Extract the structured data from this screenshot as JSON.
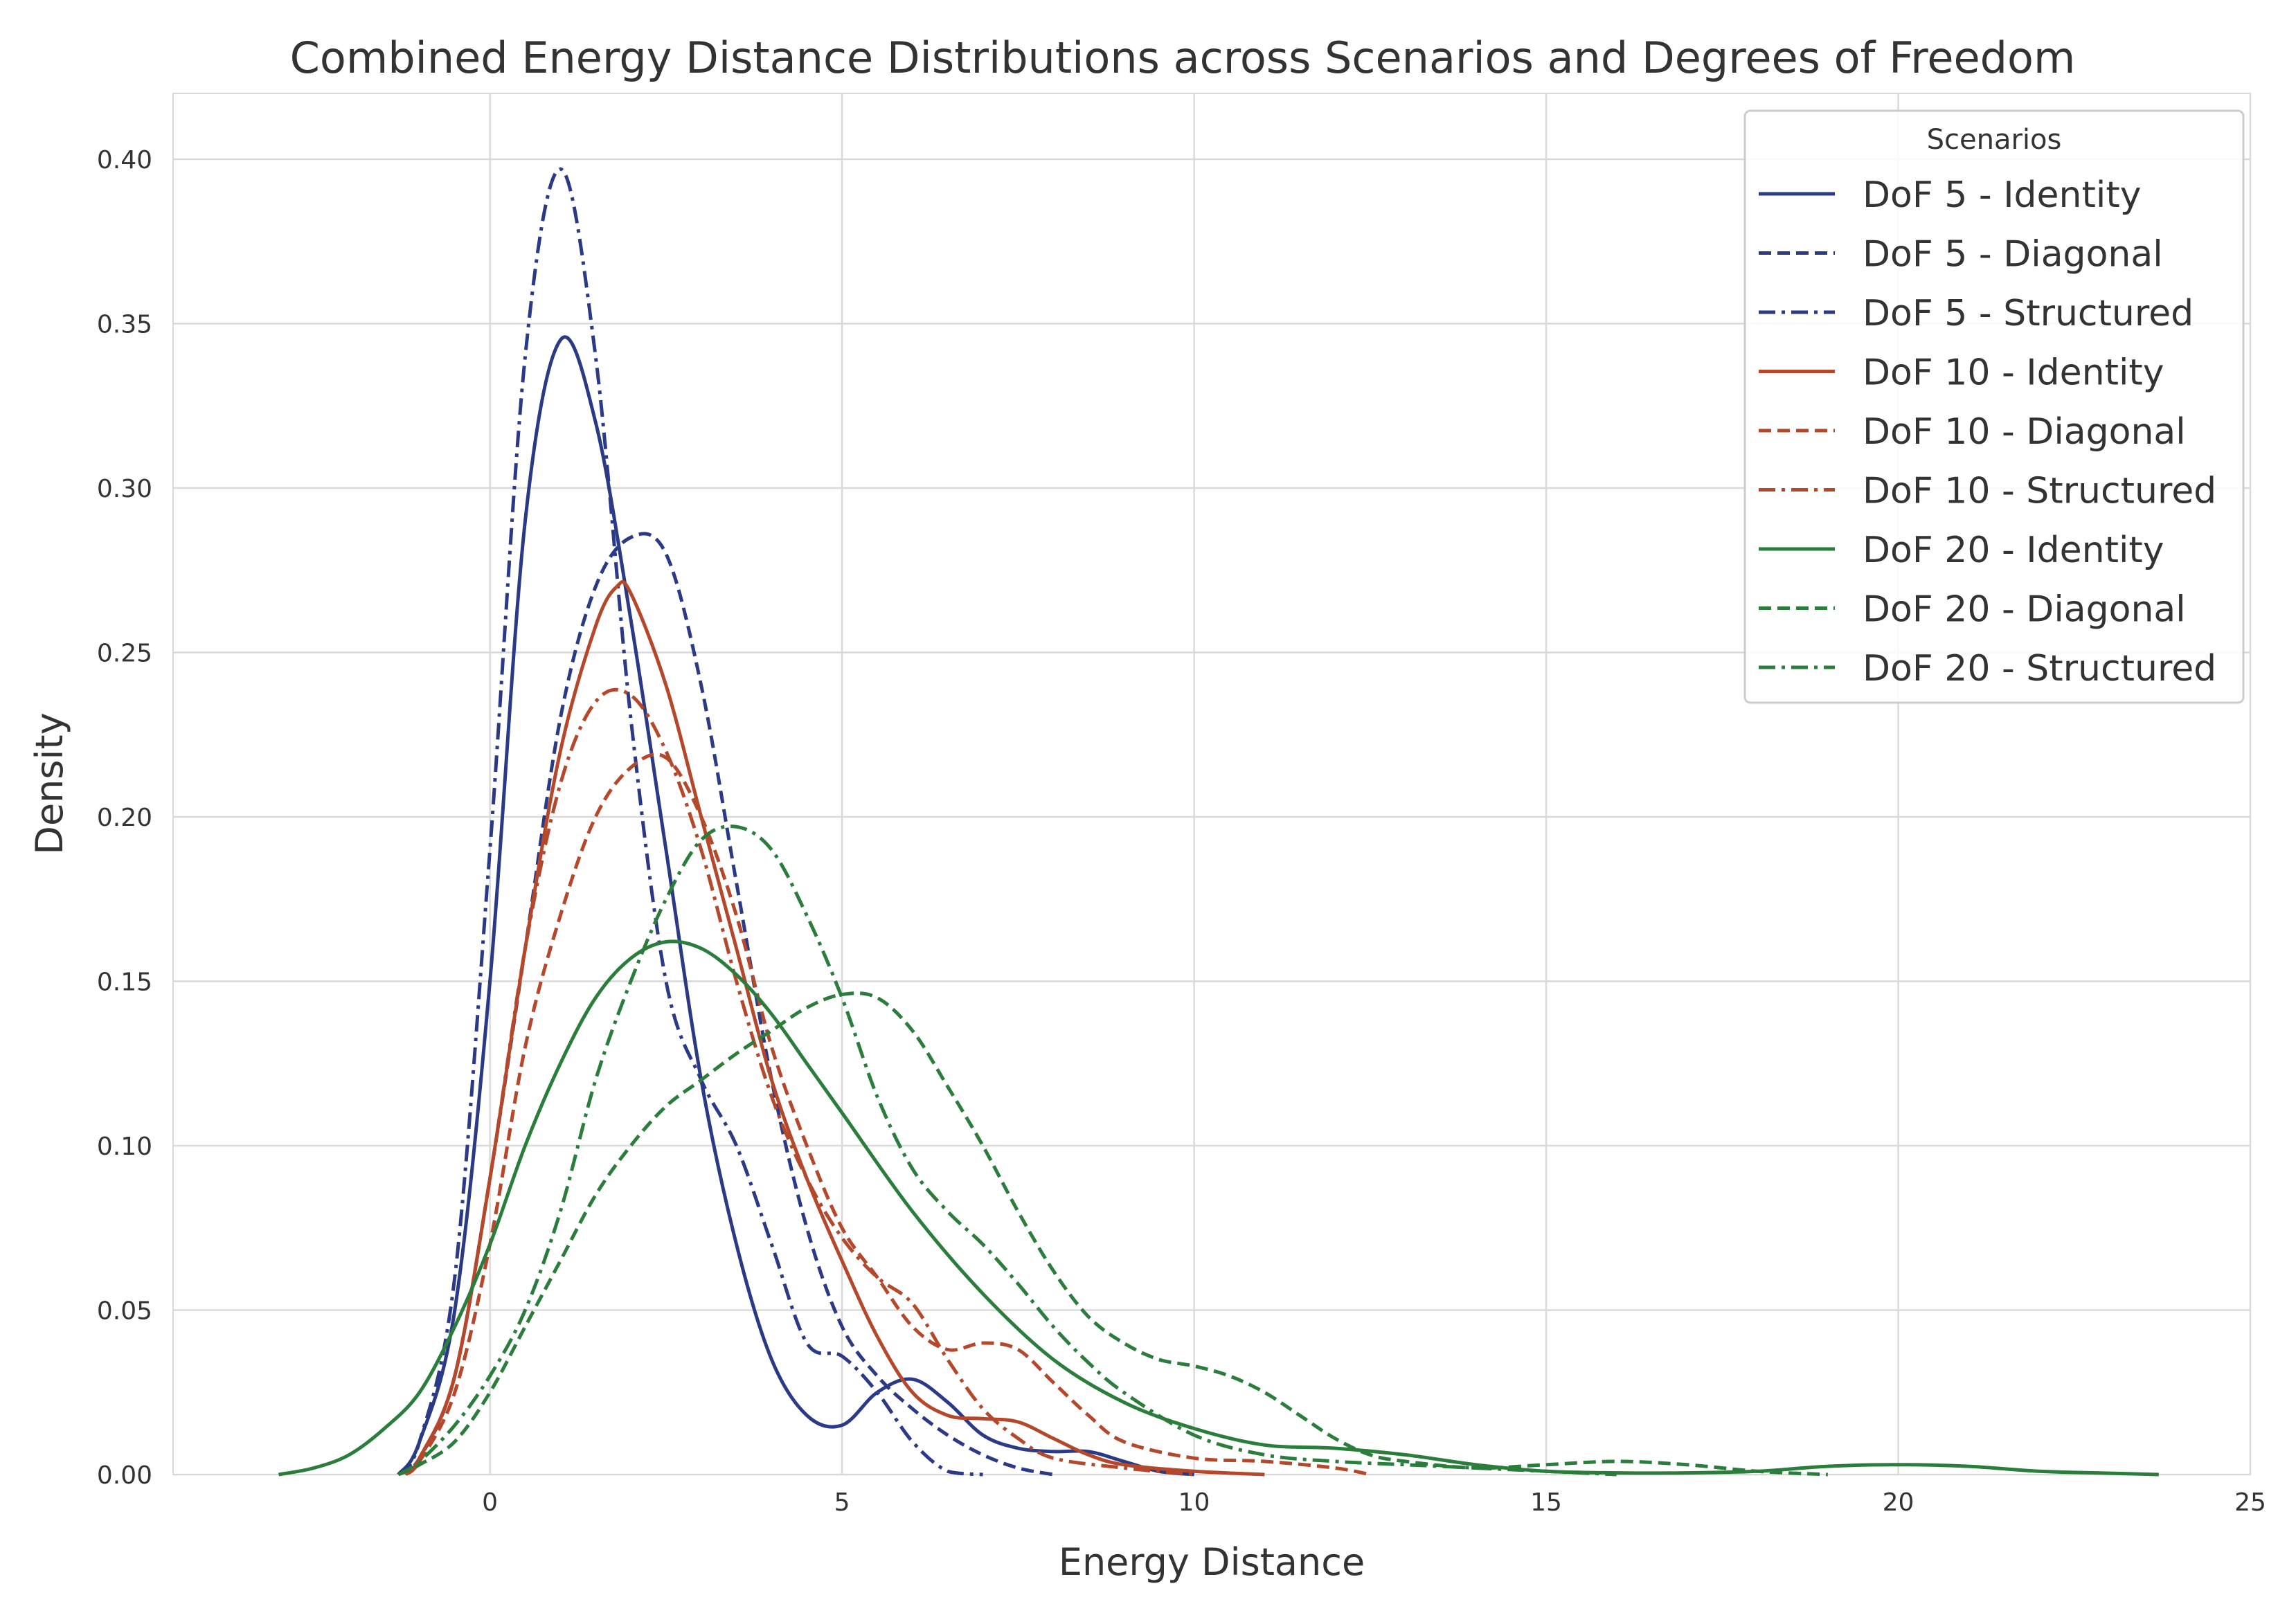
{
  "chart_data": {
    "type": "line",
    "title": "Combined Energy Distance Distributions across Scenarios and Degrees of Freedom",
    "xlabel": "Energy Distance",
    "ylabel": "Density",
    "xlim": [
      -4.5,
      25
    ],
    "ylim": [
      0,
      0.42
    ],
    "xticks": [
      0,
      5,
      10,
      15,
      20,
      25
    ],
    "xtick_labels": [
      "0",
      "5",
      "10",
      "15",
      "20",
      "25"
    ],
    "yticks": [
      0,
      0.05,
      0.1,
      0.15,
      0.2,
      0.25,
      0.3,
      0.35,
      0.4
    ],
    "ytick_labels": [
      "0.00",
      "0.05",
      "0.10",
      "0.15",
      "0.20",
      "0.25",
      "0.30",
      "0.35",
      "0.40"
    ],
    "grid": true,
    "legend": {
      "title": "Scenarios",
      "position": "top-right"
    },
    "colors": {
      "dof5": "#2b3a86",
      "dof10": "#b5482b",
      "dof20": "#2a7d3a",
      "grid": "#d9d9d9",
      "text": "#333333"
    },
    "series": [
      {
        "name": "DoF 5 - Identity",
        "color": "#2b3a86",
        "dash": "solid",
        "points": [
          [
            -1.3,
            0
          ],
          [
            -1,
            0.01
          ],
          [
            -0.5,
            0.05
          ],
          [
            0,
            0.15
          ],
          [
            0.5,
            0.29
          ],
          [
            1,
            0.345
          ],
          [
            1.5,
            0.32
          ],
          [
            2,
            0.26
          ],
          [
            2.5,
            0.19
          ],
          [
            3,
            0.12
          ],
          [
            3.5,
            0.07
          ],
          [
            4,
            0.035
          ],
          [
            4.5,
            0.018
          ],
          [
            5,
            0.015
          ],
          [
            5.5,
            0.025
          ],
          [
            6,
            0.029
          ],
          [
            6.5,
            0.022
          ],
          [
            7,
            0.012
          ],
          [
            7.5,
            0.008
          ],
          [
            8,
            0.007
          ],
          [
            8.5,
            0.007
          ],
          [
            9,
            0.004
          ],
          [
            9.5,
            0.001
          ],
          [
            10,
            0
          ]
        ]
      },
      {
        "name": "DoF 5 - Diagonal",
        "color": "#2b3a86",
        "dash": "dashed",
        "points": [
          [
            -1.3,
            0
          ],
          [
            -1,
            0.005
          ],
          [
            -0.5,
            0.03
          ],
          [
            0,
            0.09
          ],
          [
            0.5,
            0.16
          ],
          [
            1,
            0.23
          ],
          [
            1.5,
            0.27
          ],
          [
            2,
            0.285
          ],
          [
            2.5,
            0.28
          ],
          [
            3,
            0.24
          ],
          [
            3.5,
            0.18
          ],
          [
            4,
            0.12
          ],
          [
            4.5,
            0.075
          ],
          [
            5,
            0.045
          ],
          [
            5.5,
            0.03
          ],
          [
            6,
            0.02
          ],
          [
            6.5,
            0.012
          ],
          [
            7,
            0.006
          ],
          [
            7.5,
            0.002
          ],
          [
            8,
            0
          ]
        ]
      },
      {
        "name": "DoF 5 - Structured",
        "color": "#2b3a86",
        "dash": "dashdot",
        "points": [
          [
            -1.3,
            0
          ],
          [
            -1,
            0.01
          ],
          [
            -0.5,
            0.06
          ],
          [
            0,
            0.19
          ],
          [
            0.5,
            0.34
          ],
          [
            1,
            0.397
          ],
          [
            1.5,
            0.34
          ],
          [
            2,
            0.23
          ],
          [
            2.5,
            0.15
          ],
          [
            3,
            0.12
          ],
          [
            3.5,
            0.1
          ],
          [
            4,
            0.07
          ],
          [
            4.5,
            0.04
          ],
          [
            5,
            0.036
          ],
          [
            5.5,
            0.025
          ],
          [
            6,
            0.01
          ],
          [
            6.5,
            0.001
          ],
          [
            7,
            0
          ]
        ]
      },
      {
        "name": "DoF 10 - Identity",
        "color": "#b5482b",
        "dash": "solid",
        "points": [
          [
            -1.2,
            0
          ],
          [
            -1,
            0.005
          ],
          [
            -0.5,
            0.03
          ],
          [
            0,
            0.09
          ],
          [
            0.5,
            0.16
          ],
          [
            1,
            0.22
          ],
          [
            1.5,
            0.258
          ],
          [
            1.8,
            0.27
          ],
          [
            2,
            0.268
          ],
          [
            2.5,
            0.24
          ],
          [
            3,
            0.2
          ],
          [
            3.5,
            0.16
          ],
          [
            4,
            0.12
          ],
          [
            4.5,
            0.09
          ],
          [
            5,
            0.065
          ],
          [
            5.5,
            0.042
          ],
          [
            6,
            0.025
          ],
          [
            6.5,
            0.018
          ],
          [
            7,
            0.017
          ],
          [
            7.5,
            0.016
          ],
          [
            8,
            0.011
          ],
          [
            8.5,
            0.006
          ],
          [
            9,
            0.003
          ],
          [
            10,
            0.001
          ],
          [
            11,
            0
          ]
        ]
      },
      {
        "name": "DoF 10 - Diagonal",
        "color": "#b5482b",
        "dash": "dashed",
        "points": [
          [
            -1.2,
            0
          ],
          [
            -1,
            0.004
          ],
          [
            -0.5,
            0.025
          ],
          [
            0,
            0.07
          ],
          [
            0.5,
            0.13
          ],
          [
            1,
            0.17
          ],
          [
            1.5,
            0.2
          ],
          [
            2,
            0.215
          ],
          [
            2.5,
            0.218
          ],
          [
            3,
            0.2
          ],
          [
            3.5,
            0.17
          ],
          [
            4,
            0.13
          ],
          [
            4.5,
            0.1
          ],
          [
            5,
            0.075
          ],
          [
            5.5,
            0.06
          ],
          [
            6,
            0.045
          ],
          [
            6.5,
            0.038
          ],
          [
            7,
            0.04
          ],
          [
            7.5,
            0.038
          ],
          [
            8,
            0.028
          ],
          [
            8.5,
            0.018
          ],
          [
            9,
            0.01
          ],
          [
            10,
            0.005
          ],
          [
            11,
            0.004
          ],
          [
            12,
            0.002
          ],
          [
            12.5,
            0
          ]
        ]
      },
      {
        "name": "DoF 10 - Structured",
        "color": "#b5482b",
        "dash": "dashdot",
        "points": [
          [
            -1.2,
            0
          ],
          [
            -1,
            0.005
          ],
          [
            -0.5,
            0.03
          ],
          [
            0,
            0.09
          ],
          [
            0.5,
            0.16
          ],
          [
            1,
            0.21
          ],
          [
            1.5,
            0.235
          ],
          [
            2,
            0.237
          ],
          [
            2.5,
            0.22
          ],
          [
            3,
            0.19
          ],
          [
            3.5,
            0.15
          ],
          [
            4,
            0.115
          ],
          [
            4.5,
            0.09
          ],
          [
            5,
            0.072
          ],
          [
            5.5,
            0.06
          ],
          [
            6,
            0.052
          ],
          [
            6.5,
            0.035
          ],
          [
            7,
            0.02
          ],
          [
            7.5,
            0.011
          ],
          [
            8,
            0.005
          ],
          [
            9,
            0.002
          ],
          [
            10,
            0
          ]
        ]
      },
      {
        "name": "DoF 20 - Identity",
        "color": "#2a7d3a",
        "dash": "solid",
        "points": [
          [
            -3,
            0
          ],
          [
            -2.5,
            0.002
          ],
          [
            -2,
            0.006
          ],
          [
            -1.5,
            0.014
          ],
          [
            -1,
            0.025
          ],
          [
            -0.5,
            0.045
          ],
          [
            0,
            0.07
          ],
          [
            0.5,
            0.1
          ],
          [
            1,
            0.125
          ],
          [
            1.5,
            0.145
          ],
          [
            2,
            0.157
          ],
          [
            2.5,
            0.162
          ],
          [
            3,
            0.16
          ],
          [
            3.5,
            0.152
          ],
          [
            4,
            0.14
          ],
          [
            4.5,
            0.125
          ],
          [
            5,
            0.11
          ],
          [
            6,
            0.08
          ],
          [
            7,
            0.055
          ],
          [
            8,
            0.035
          ],
          [
            9,
            0.022
          ],
          [
            10,
            0.014
          ],
          [
            11,
            0.009
          ],
          [
            12,
            0.008
          ],
          [
            13,
            0.006
          ],
          [
            14,
            0.003
          ],
          [
            15,
            0.001
          ],
          [
            16,
            0.0005
          ],
          [
            17,
            0.0005
          ],
          [
            18,
            0.001
          ],
          [
            19,
            0.0025
          ],
          [
            20,
            0.003
          ],
          [
            21,
            0.0025
          ],
          [
            22,
            0.001
          ],
          [
            23,
            0.0004
          ],
          [
            23.7,
            0
          ]
        ]
      },
      {
        "name": "DoF 20 - Diagonal",
        "color": "#2a7d3a",
        "dash": "dashed",
        "points": [
          [
            -1.3,
            0
          ],
          [
            -1,
            0.003
          ],
          [
            -0.5,
            0.01
          ],
          [
            0,
            0.025
          ],
          [
            0.5,
            0.045
          ],
          [
            1,
            0.065
          ],
          [
            1.5,
            0.085
          ],
          [
            2,
            0.1
          ],
          [
            2.5,
            0.112
          ],
          [
            3,
            0.12
          ],
          [
            3.5,
            0.128
          ],
          [
            4,
            0.135
          ],
          [
            4.5,
            0.142
          ],
          [
            5,
            0.146
          ],
          [
            5.5,
            0.145
          ],
          [
            6,
            0.135
          ],
          [
            6.5,
            0.118
          ],
          [
            7,
            0.1
          ],
          [
            7.5,
            0.08
          ],
          [
            8,
            0.062
          ],
          [
            8.5,
            0.048
          ],
          [
            9,
            0.04
          ],
          [
            9.5,
            0.035
          ],
          [
            10,
            0.033
          ],
          [
            10.5,
            0.03
          ],
          [
            11,
            0.025
          ],
          [
            11.5,
            0.018
          ],
          [
            12,
            0.011
          ],
          [
            12.5,
            0.006
          ],
          [
            13,
            0.004
          ],
          [
            14,
            0.002
          ],
          [
            15,
            0.003
          ],
          [
            16,
            0.004
          ],
          [
            17,
            0.003
          ],
          [
            18,
            0.001
          ],
          [
            19,
            0
          ]
        ]
      },
      {
        "name": "DoF 20 - Structured",
        "color": "#2a7d3a",
        "dash": "dashdot",
        "points": [
          [
            -1.3,
            0
          ],
          [
            -1,
            0.004
          ],
          [
            -0.5,
            0.015
          ],
          [
            0,
            0.03
          ],
          [
            0.5,
            0.05
          ],
          [
            1,
            0.08
          ],
          [
            1.5,
            0.12
          ],
          [
            2,
            0.15
          ],
          [
            2.5,
            0.175
          ],
          [
            3,
            0.193
          ],
          [
            3.5,
            0.197
          ],
          [
            4,
            0.19
          ],
          [
            4.5,
            0.17
          ],
          [
            5,
            0.145
          ],
          [
            5.5,
            0.115
          ],
          [
            6,
            0.093
          ],
          [
            6.5,
            0.08
          ],
          [
            7,
            0.07
          ],
          [
            7.5,
            0.058
          ],
          [
            8,
            0.045
          ],
          [
            8.5,
            0.034
          ],
          [
            9,
            0.025
          ],
          [
            10,
            0.012
          ],
          [
            11,
            0.006
          ],
          [
            12,
            0.004
          ],
          [
            13,
            0.003
          ],
          [
            14,
            0.002
          ],
          [
            15,
            0.001
          ],
          [
            16,
            0
          ]
        ]
      }
    ]
  }
}
